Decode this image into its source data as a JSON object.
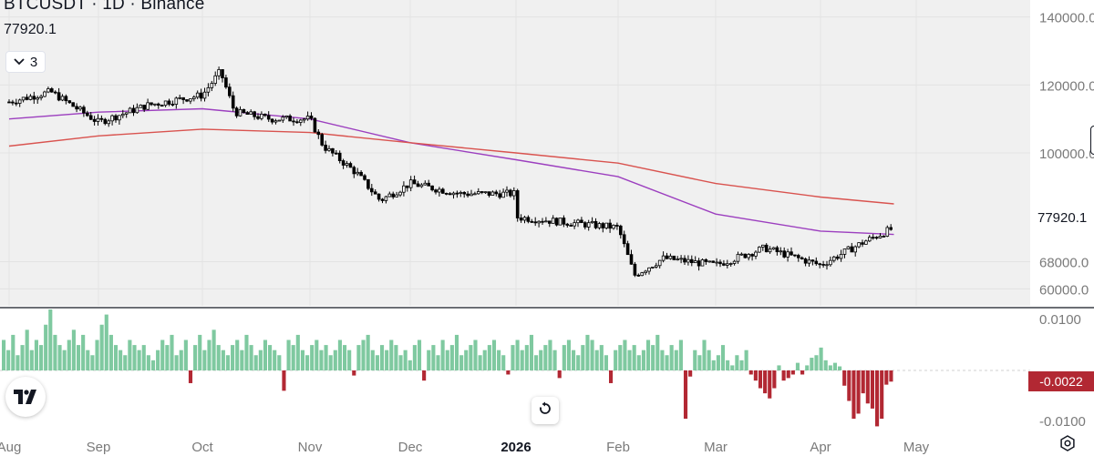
{
  "header": {
    "title": "BTCUSDT · 1D · Binance",
    "last_price": "77920.1",
    "indicators_count": "3"
  },
  "price_tag": "77920.1",
  "oscillator_tag": "-0.0022",
  "colors": {
    "up_bar": "#7fc9a0",
    "down_bar": "#b22833",
    "ma_short": "#9c3fbf",
    "ma_long": "#d9534f",
    "candle": "#000000",
    "panel_bg": "#f0f0f0"
  },
  "icons": {
    "collapse": "chevron-down-icon",
    "logo": "tradingview-logo-icon",
    "reset": "reset-icon",
    "settings": "gear-icon"
  },
  "chart_data": [
    {
      "type": "candlestick",
      "title": "BTCUSDT · 1D · Binance",
      "ylim": [
        55000,
        145000
      ],
      "y_ticks": [
        "140000.0",
        "120000.0",
        "100000.0",
        "68000.0",
        "60000.0"
      ],
      "x_ticks": [
        "Aug",
        "Sep",
        "Oct",
        "Nov",
        "Dec",
        "2026",
        "Feb",
        "Mar",
        "Apr",
        "May"
      ],
      "grid": true,
      "series": [
        {
          "kind": "close",
          "points": [
            [
              "Aug",
              115000
            ],
            [
              "Aug 15",
              118000
            ],
            [
              "Sep",
              109000
            ],
            [
              "Sep 15",
              114000
            ],
            [
              "Oct",
              117000
            ],
            [
              "Oct 6",
              124000
            ],
            [
              "Oct 10",
              112000
            ],
            [
              "Oct 20",
              110000
            ],
            [
              "Nov",
              110000
            ],
            [
              "Nov 5",
              102000
            ],
            [
              "Nov 15",
              94000
            ],
            [
              "Nov 22",
              86000
            ],
            [
              "Dec",
              91000
            ],
            [
              "Dec 15",
              88000
            ],
            [
              "2026",
              88000
            ],
            [
              "Jan 15",
              95000
            ],
            [
              "Feb",
              78000
            ],
            [
              "Feb 6",
              64000
            ],
            [
              "Feb 15",
              69000
            ],
            [
              "Mar",
              67000
            ],
            [
              "Mar 15",
              72000
            ],
            [
              "Apr",
              67000
            ],
            [
              "Apr 15",
              74000
            ],
            [
              "Apr 24",
              77920
            ]
          ]
        },
        {
          "kind": "moving_average",
          "points": [
            [
              "Aug",
              110000
            ],
            [
              "Sep",
              112000
            ],
            [
              "Oct",
              113000
            ],
            [
              "Nov",
              110000
            ],
            [
              "Dec",
              103000
            ],
            [
              "2026",
              98000
            ],
            [
              "Feb",
              93000
            ],
            [
              "Mar",
              82000
            ],
            [
              "Apr",
              77000
            ],
            [
              "Apr 24",
              76000
            ]
          ]
        },
        {
          "kind": "moving_average",
          "points": [
            [
              "Aug",
              102000
            ],
            [
              "Sep",
              105000
            ],
            [
              "Oct",
              107000
            ],
            [
              "Nov",
              106000
            ],
            [
              "Dec",
              103000
            ],
            [
              "2026",
              100000
            ],
            [
              "Feb",
              97000
            ],
            [
              "Mar",
              91000
            ],
            [
              "Apr",
              87000
            ],
            [
              "Apr 24",
              85000
            ]
          ]
        }
      ]
    },
    {
      "type": "bar",
      "ylim": [
        -0.012,
        0.012
      ],
      "y_ticks": [
        "0.0100",
        "-0.0100"
      ],
      "last_value": -0.0022,
      "values": [
        0.006,
        0.004,
        0.007,
        0.003,
        0.005,
        0.008,
        0.004,
        0.006,
        0.005,
        0.009,
        0.012,
        0.007,
        0.005,
        0.004,
        0.006,
        0.008,
        0.005,
        0.007,
        0.004,
        0.003,
        0.006,
        0.009,
        0.011,
        0.007,
        0.005,
        0.004,
        0.003,
        0.006,
        0.005,
        0.004,
        0.005,
        0.003,
        0.002,
        0.004,
        0.006,
        0.005,
        0.007,
        0.003,
        0.004,
        0.006,
        -0.0025,
        0.005,
        0.007,
        0.004,
        0.006,
        0.008,
        0.005,
        0.004,
        0.003,
        0.005,
        0.006,
        0.004,
        0.007,
        0.005,
        0.003,
        0.004,
        0.006,
        0.005,
        0.004,
        0.003,
        -0.004,
        0.006,
        0.005,
        0.007,
        0.004,
        0.003,
        0.005,
        0.006,
        0.004,
        0.005,
        0.003,
        0.004,
        0.006,
        0.005,
        0.004,
        -0.001,
        0.005,
        0.006,
        0.007,
        0.004,
        0.003,
        0.005,
        0.004,
        0.006,
        0.005,
        0.003,
        0.004,
        0.002,
        0.005,
        0.006,
        -0.002,
        0.004,
        0.005,
        0.003,
        0.006,
        0.004,
        0.005,
        0.007,
        0.003,
        0.004,
        0.005,
        0.006,
        0.003,
        0.004,
        0.005,
        0.006,
        0.004,
        0.003,
        -0.0008,
        0.005,
        0.006,
        0.004,
        0.005,
        0.007,
        0.003,
        0.004,
        0.005,
        0.006,
        0.004,
        -0.0015,
        0.005,
        0.006,
        0.004,
        0.003,
        0.005,
        0.007,
        0.006,
        0.004,
        0.005,
        0.003,
        -0.0025,
        0.004,
        0.005,
        0.006,
        0.004,
        0.005,
        0.003,
        0.004,
        0.006,
        0.005,
        0.007,
        0.004,
        0.003,
        0.005,
        0.004,
        0.006,
        -0.0095,
        -0.0012,
        0.004,
        0.003,
        0.006,
        0.004,
        0.002,
        0.003,
        0.005,
        0.002,
        0.001,
        0.003,
        0.002,
        0.004,
        -0.0008,
        -0.002,
        -0.0035,
        -0.0045,
        -0.0055,
        -0.0035,
        0.001,
        -0.002,
        -0.0015,
        -0.0008,
        0.0015,
        -0.0008,
        0.001,
        0.0025,
        0.003,
        0.0045,
        0.002,
        0.001,
        0.0015,
        0.0008,
        -0.003,
        -0.006,
        -0.0095,
        -0.0085,
        -0.0045,
        -0.0065,
        -0.0075,
        -0.011,
        -0.0095,
        -0.0028,
        -0.0022
      ]
    }
  ]
}
